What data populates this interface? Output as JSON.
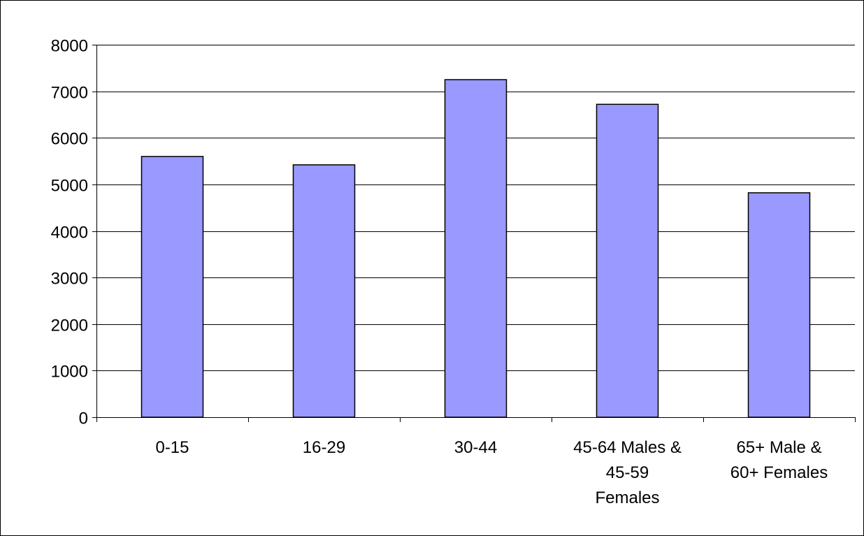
{
  "chart_data": {
    "type": "bar",
    "categories": [
      [
        "0-15"
      ],
      [
        "16-29"
      ],
      [
        "30-44"
      ],
      [
        "45-64 Males &",
        "45-59",
        "Females"
      ],
      [
        "65+ Male &",
        "60+ Females"
      ]
    ],
    "values": [
      5600,
      5420,
      7250,
      6720,
      4820
    ],
    "title": "",
    "xlabel": "",
    "ylabel": "",
    "ylim": [
      0,
      8000
    ],
    "yticks": [
      "0",
      "1000",
      "2000",
      "3000",
      "4000",
      "5000",
      "6000",
      "7000",
      "8000"
    ],
    "grid": true,
    "legend": "none",
    "bar_color": "#9999FF",
    "bar_edge_color": "#000000"
  }
}
